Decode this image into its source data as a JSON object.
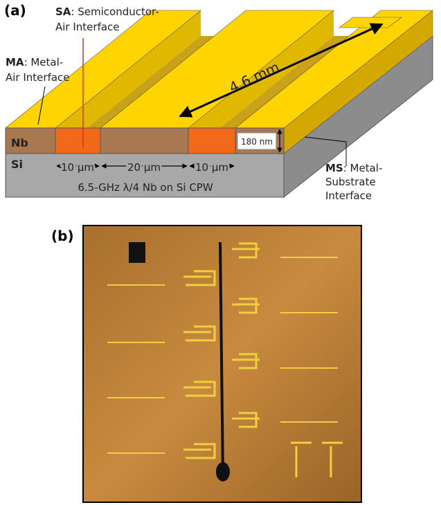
{
  "panel_a": {
    "label": "(a)",
    "sa": {
      "abbr": "SA",
      "line1": ": Semiconductor-",
      "line2": "Air Interface"
    },
    "ma": {
      "abbr": "MA",
      "line1": ": Metal-",
      "line2": "Air Interface"
    },
    "ms": {
      "abbr": "MS",
      "line1": ": Metal-",
      "line2": "Substrate",
      "line3": "Interface"
    },
    "length": "4.6 mm",
    "layers": [
      "Nb",
      "Si"
    ],
    "thickness": "180 nm",
    "widths": [
      "10 μm",
      "20 μm",
      "10 μm"
    ],
    "caption": "6.5-GHz λ/4 Nb on Si CPW"
  },
  "panel_b": {
    "label": "(b)"
  }
}
